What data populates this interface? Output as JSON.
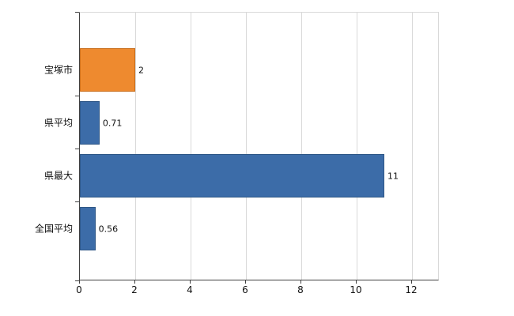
{
  "chart_data": {
    "type": "bar",
    "orientation": "horizontal",
    "title": "",
    "xlabel": "",
    "ylabel": "",
    "categories": [
      "宝塚市",
      "県平均",
      "県最大",
      "全国平均"
    ],
    "values": [
      2,
      0.71,
      11,
      0.56
    ],
    "value_labels": [
      "2",
      "0.71",
      "11",
      "0.56"
    ],
    "bar_colors": [
      "#ee8a2f",
      "#3c6ca8",
      "#3c6ca8",
      "#3c6ca8"
    ],
    "bar_border_colors": [
      "#c96e1c",
      "#2f5786",
      "#2f5786",
      "#2f5786"
    ],
    "xlim": [
      0,
      13
    ],
    "x_ticks": [
      0,
      2,
      4,
      6,
      8,
      10,
      12
    ],
    "x_tick_labels": [
      "0",
      "2",
      "4",
      "6",
      "8",
      "10",
      "12"
    ],
    "grid": true,
    "legend_position": "none"
  },
  "colors": {
    "background": "#ffffff",
    "grid": "#d9d9d9",
    "axis": "#404040",
    "text": "#111111"
  }
}
